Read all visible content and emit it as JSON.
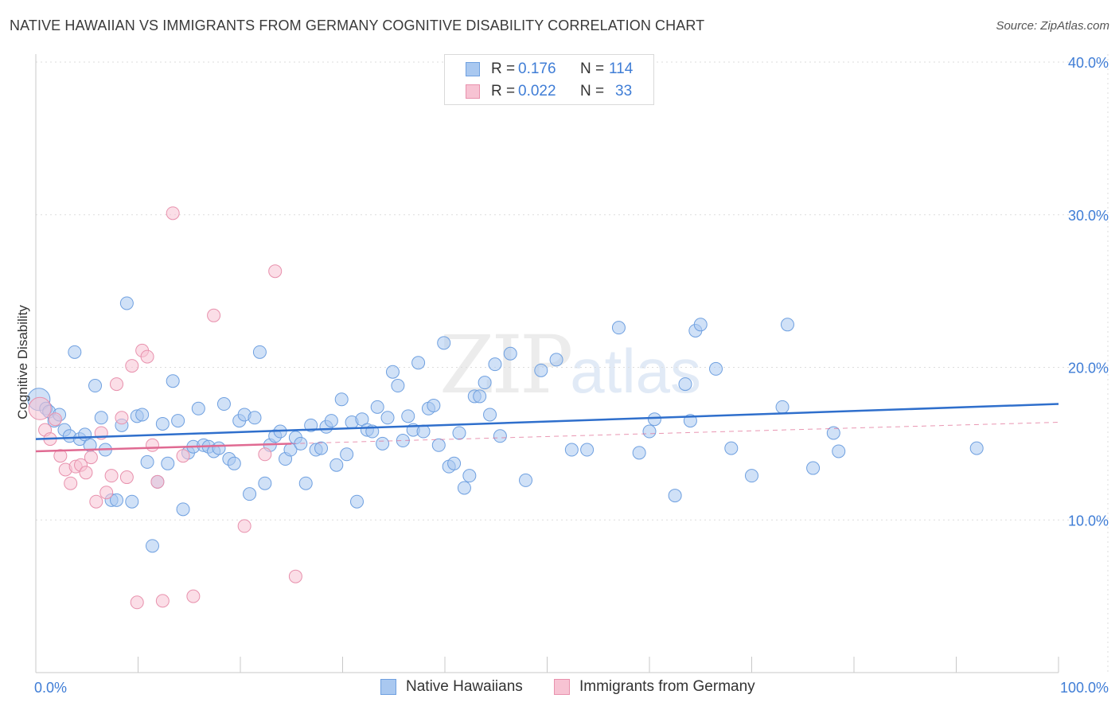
{
  "title": "NATIVE HAWAIIAN VS IMMIGRANTS FROM GERMANY COGNITIVE DISABILITY CORRELATION CHART",
  "source": "Source: ZipAtlas.com",
  "watermark": {
    "zip": "ZIP",
    "atlas": "atlas"
  },
  "legend": {
    "rows": [
      {
        "r_label": "R =",
        "r_value": "0.176",
        "n_label": "N =",
        "n_value": "114",
        "color": "#a9c8f0",
        "border": "#6fa0e0"
      },
      {
        "r_label": "R =",
        "r_value": "0.022",
        "n_label": "N =",
        "n_value": "33",
        "color": "#f7c3d3",
        "border": "#e891ad"
      }
    ]
  },
  "bottom_legend": [
    {
      "label": "Native Hawaiians",
      "color": "#a9c8f0",
      "border": "#6fa0e0"
    },
    {
      "label": "Immigrants from Germany",
      "color": "#f7c3d3",
      "border": "#e891ad"
    }
  ],
  "chart_data": {
    "type": "scatter",
    "title": "NATIVE HAWAIIAN VS IMMIGRANTS FROM GERMANY COGNITIVE DISABILITY CORRELATION CHART",
    "xlabel": "",
    "ylabel": "Cognitive Disability",
    "xlim": [
      0,
      100
    ],
    "ylim": [
      0,
      40
    ],
    "x_tick_labels": [
      "0.0%",
      "100.0%"
    ],
    "y_ticks": [
      10,
      20,
      30,
      40
    ],
    "y_tick_labels": [
      "10.0%",
      "20.0%",
      "30.0%",
      "40.0%"
    ],
    "grid": true,
    "legend_position": "top-center",
    "series": [
      {
        "name": "Native Hawaiians",
        "color": "#6fa0e0",
        "fill": "#a9c8f0",
        "r": 0.176,
        "n": 114,
        "trend": {
          "x": [
            0,
            100
          ],
          "y": [
            15.3,
            17.6
          ],
          "color": "#2f6fcc"
        },
        "points": [
          [
            0.3,
            17.9
          ],
          [
            1.0,
            17.3
          ],
          [
            1.3,
            17.1
          ],
          [
            1.8,
            16.5
          ],
          [
            2.3,
            16.9
          ],
          [
            2.8,
            15.9
          ],
          [
            3.3,
            15.5
          ],
          [
            3.8,
            21.0
          ],
          [
            4.3,
            15.3
          ],
          [
            4.8,
            15.6
          ],
          [
            5.3,
            14.9
          ],
          [
            5.8,
            18.8
          ],
          [
            6.4,
            16.7
          ],
          [
            6.8,
            14.6
          ],
          [
            7.4,
            11.3
          ],
          [
            7.9,
            11.3
          ],
          [
            8.4,
            16.2
          ],
          [
            8.9,
            24.2
          ],
          [
            9.4,
            11.2
          ],
          [
            9.9,
            16.8
          ],
          [
            10.4,
            16.9
          ],
          [
            10.9,
            13.8
          ],
          [
            11.4,
            8.3
          ],
          [
            11.9,
            12.5
          ],
          [
            12.4,
            16.3
          ],
          [
            12.9,
            13.7
          ],
          [
            13.4,
            19.1
          ],
          [
            13.9,
            16.5
          ],
          [
            14.4,
            10.7
          ],
          [
            14.9,
            14.4
          ],
          [
            15.4,
            14.8
          ],
          [
            15.9,
            17.3
          ],
          [
            16.4,
            14.9
          ],
          [
            16.9,
            14.8
          ],
          [
            17.4,
            14.5
          ],
          [
            17.9,
            14.7
          ],
          [
            18.4,
            17.6
          ],
          [
            18.9,
            14.0
          ],
          [
            19.4,
            13.7
          ],
          [
            19.9,
            16.5
          ],
          [
            20.4,
            16.9
          ],
          [
            20.9,
            11.7
          ],
          [
            21.4,
            16.7
          ],
          [
            21.9,
            21.0
          ],
          [
            22.4,
            12.4
          ],
          [
            22.9,
            14.9
          ],
          [
            23.4,
            15.5
          ],
          [
            23.9,
            15.8
          ],
          [
            24.4,
            14.0
          ],
          [
            24.9,
            14.6
          ],
          [
            25.4,
            15.4
          ],
          [
            25.9,
            15.0
          ],
          [
            26.4,
            12.4
          ],
          [
            26.9,
            16.2
          ],
          [
            27.4,
            14.6
          ],
          [
            27.9,
            14.7
          ],
          [
            28.4,
            16.1
          ],
          [
            28.9,
            16.5
          ],
          [
            29.4,
            13.6
          ],
          [
            29.9,
            17.9
          ],
          [
            30.4,
            14.3
          ],
          [
            30.9,
            16.4
          ],
          [
            31.4,
            11.2
          ],
          [
            31.9,
            16.6
          ],
          [
            32.4,
            15.9
          ],
          [
            32.9,
            15.8
          ],
          [
            33.4,
            17.4
          ],
          [
            33.9,
            15.0
          ],
          [
            34.4,
            16.7
          ],
          [
            34.9,
            19.7
          ],
          [
            35.4,
            18.8
          ],
          [
            35.9,
            15.2
          ],
          [
            36.4,
            16.8
          ],
          [
            36.9,
            15.9
          ],
          [
            37.4,
            20.3
          ],
          [
            37.9,
            15.8
          ],
          [
            38.4,
            17.3
          ],
          [
            38.9,
            17.5
          ],
          [
            39.4,
            14.9
          ],
          [
            39.9,
            21.6
          ],
          [
            40.4,
            13.5
          ],
          [
            40.9,
            13.7
          ],
          [
            41.4,
            15.7
          ],
          [
            41.9,
            12.1
          ],
          [
            42.4,
            12.9
          ],
          [
            42.9,
            18.1
          ],
          [
            43.4,
            18.1
          ],
          [
            43.9,
            19.0
          ],
          [
            44.4,
            16.9
          ],
          [
            44.9,
            20.2
          ],
          [
            45.4,
            15.5
          ],
          [
            46.4,
            20.9
          ],
          [
            47.9,
            12.6
          ],
          [
            49.4,
            19.8
          ],
          [
            50.9,
            20.5
          ],
          [
            52.4,
            14.6
          ],
          [
            53.9,
            14.6
          ],
          [
            57.0,
            22.6
          ],
          [
            59.0,
            14.4
          ],
          [
            60.0,
            15.8
          ],
          [
            60.5,
            16.6
          ],
          [
            62.5,
            11.6
          ],
          [
            63.5,
            18.9
          ],
          [
            64.0,
            16.5
          ],
          [
            64.5,
            22.4
          ],
          [
            65.0,
            22.8
          ],
          [
            66.5,
            19.9
          ],
          [
            68.0,
            14.7
          ],
          [
            70.0,
            12.9
          ],
          [
            73.0,
            17.4
          ],
          [
            73.5,
            22.8
          ],
          [
            76.0,
            13.4
          ],
          [
            78.0,
            15.7
          ],
          [
            78.5,
            14.5
          ],
          [
            92.0,
            14.7
          ]
        ]
      },
      {
        "name": "Immigrants from Germany",
        "color": "#e891ad",
        "fill": "#f7c3d3",
        "r": 0.022,
        "n": 33,
        "trend": {
          "x": [
            0,
            25
          ],
          "y": [
            14.5,
            15.0
          ],
          "color": "#e06a92",
          "dashed_extension_to": [
            100,
            16.4
          ]
        },
        "points": [
          [
            0.4,
            17.3
          ],
          [
            0.9,
            15.9
          ],
          [
            1.4,
            15.3
          ],
          [
            1.9,
            16.6
          ],
          [
            2.4,
            14.2
          ],
          [
            2.9,
            13.3
          ],
          [
            3.4,
            12.4
          ],
          [
            3.9,
            13.5
          ],
          [
            4.4,
            13.6
          ],
          [
            4.9,
            13.1
          ],
          [
            5.4,
            14.1
          ],
          [
            5.9,
            11.2
          ],
          [
            6.4,
            15.7
          ],
          [
            6.9,
            11.8
          ],
          [
            7.4,
            12.9
          ],
          [
            7.9,
            18.9
          ],
          [
            8.4,
            16.7
          ],
          [
            8.9,
            12.8
          ],
          [
            9.4,
            20.1
          ],
          [
            9.9,
            4.6
          ],
          [
            10.4,
            21.1
          ],
          [
            10.9,
            20.7
          ],
          [
            11.4,
            14.9
          ],
          [
            11.9,
            12.5
          ],
          [
            12.4,
            4.7
          ],
          [
            13.4,
            30.1
          ],
          [
            14.4,
            14.2
          ],
          [
            15.4,
            5.0
          ],
          [
            17.4,
            23.4
          ],
          [
            20.4,
            9.6
          ],
          [
            22.4,
            14.3
          ],
          [
            23.4,
            26.3
          ],
          [
            25.4,
            6.3
          ]
        ]
      }
    ]
  }
}
